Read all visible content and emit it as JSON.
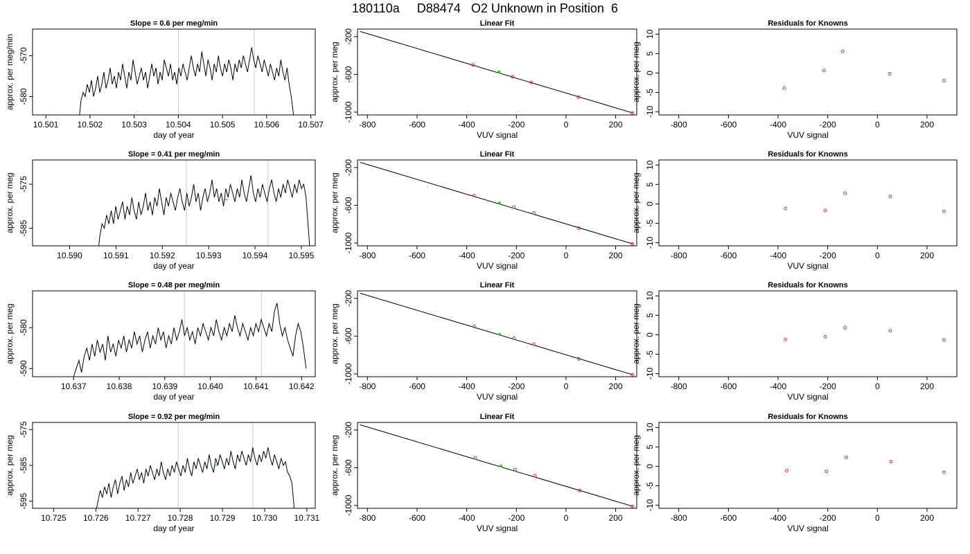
{
  "page": {
    "title": "180110a     D88474   O2 Unknown in Position  6"
  },
  "chart_data": [
    {
      "type": "line",
      "title": "Slope =  0.6  per meg/min",
      "xlabel": "day of year",
      "ylabel": "approx. per meg/min",
      "xlim": [
        10.5007,
        10.5071
      ],
      "ylim": [
        -584.5,
        -563.5
      ],
      "xticks": [
        10.501,
        10.502,
        10.503,
        10.504,
        10.505,
        10.506,
        10.507
      ],
      "xtick_labels": [
        "10.501",
        "10.502",
        "10.503",
        "10.504",
        "10.505",
        "10.506",
        "10.507"
      ],
      "yticks": [
        -580,
        -570
      ],
      "ytick_labels": [
        "-580",
        "-570"
      ],
      "vlines": [
        10.504,
        10.50572
      ],
      "green_point": {
        "x": 10.50485,
        "y": -573.0
      },
      "series": [
        {
          "x_start": 10.50175,
          "x_end": 10.50665,
          "y": [
            -586,
            -581,
            -579,
            -580,
            -577,
            -579,
            -576,
            -580,
            -578,
            -575,
            -579,
            -577,
            -574,
            -578,
            -576,
            -573,
            -577,
            -575,
            -578,
            -574,
            -576,
            -572,
            -575,
            -578,
            -574,
            -576,
            -571,
            -574,
            -577,
            -575,
            -573,
            -576,
            -574,
            -578,
            -575,
            -572,
            -575,
            -573,
            -577,
            -574,
            -576,
            -571,
            -573,
            -575,
            -572,
            -576,
            -574,
            -577,
            -573,
            -575,
            -572,
            -574,
            -576,
            -573,
            -570,
            -573,
            -575,
            -572,
            -574,
            -569,
            -572,
            -575,
            -571,
            -573,
            -576,
            -572,
            -574,
            -570,
            -573,
            -575,
            -572,
            -574,
            -571,
            -573,
            -576,
            -572,
            -574,
            -571,
            -573,
            -570,
            -572,
            -574,
            -571,
            -568,
            -571,
            -573,
            -570,
            -572,
            -574,
            -571,
            -573,
            -575,
            -572,
            -574,
            -576,
            -573,
            -575,
            -571,
            -574,
            -576,
            -573,
            -577,
            -580,
            -584,
            -589
          ]
        }
      ]
    },
    {
      "type": "line",
      "title": "Linear Fit",
      "xlabel": "VUV signal",
      "ylabel": "approx. per meg",
      "xlim": [
        -840,
        285
      ],
      "ylim": [
        -1030,
        -120
      ],
      "xticks": [
        -800,
        -600,
        -400,
        -200,
        0,
        200
      ],
      "xtick_labels": [
        "-800",
        "-600",
        "-400",
        "-200",
        "0",
        "200"
      ],
      "yticks": [
        -200,
        -600,
        -1000
      ],
      "ytick_labels": [
        "-200",
        "-600",
        "-1000"
      ],
      "fit_line": [
        [
          -830,
          -145
        ],
        [
          270,
          -1010
        ]
      ],
      "knowns": [
        [
          -375,
          -500
        ],
        [
          -215,
          -625
        ],
        [
          -140,
          -685
        ],
        [
          50,
          -843
        ],
        [
          268,
          -1010
        ]
      ],
      "unknown": [
        -270,
        -573
      ]
    },
    {
      "type": "scatter",
      "title": "Residuals for Knowns",
      "xlabel": "VUV signal",
      "ylabel": "approx. per meg",
      "xlim": [
        -880,
        320
      ],
      "ylim": [
        -10.8,
        11.3
      ],
      "xticks": [
        -800,
        -600,
        -400,
        -200,
        0,
        200
      ],
      "xtick_labels": [
        "-800",
        "-600",
        "-400",
        "-200",
        "0",
        "200"
      ],
      "yticks": [
        -10,
        -5,
        0,
        5,
        10
      ],
      "ytick_labels": [
        "-10",
        "-5",
        "0",
        "5",
        "10"
      ],
      "points": [
        [
          -375,
          -3.9
        ],
        [
          -215,
          0.6
        ],
        [
          -140,
          5.6
        ],
        [
          50,
          -0.2
        ],
        [
          268,
          -2.0
        ]
      ]
    },
    {
      "type": "line",
      "title": "Slope =  0.41  per meg/min",
      "xlabel": "day of year",
      "ylabel": "approx. per meg",
      "xlim": [
        10.5892,
        10.5953
      ],
      "ylim": [
        -589.0,
        -569.5
      ],
      "xticks": [
        10.59,
        10.591,
        10.592,
        10.593,
        10.594,
        10.595
      ],
      "xtick_labels": [
        "10.590",
        "10.591",
        "10.592",
        "10.593",
        "10.594",
        "10.595"
      ],
      "yticks": [
        -585,
        -575
      ],
      "ytick_labels": [
        "-585",
        "-575"
      ],
      "vlines": [
        10.59252,
        10.59428
      ],
      "green_point": {
        "x": 10.59338,
        "y": -578.5
      },
      "series": [
        {
          "x_start": 10.5906,
          "x_end": 10.5952,
          "y": [
            -592,
            -587,
            -584,
            -585,
            -582,
            -584,
            -581,
            -584,
            -580,
            -583,
            -581,
            -579,
            -583,
            -580,
            -582,
            -578,
            -581,
            -583,
            -579,
            -582,
            -580,
            -577,
            -581,
            -579,
            -582,
            -578,
            -580,
            -576,
            -579,
            -582,
            -578,
            -580,
            -577,
            -579,
            -581,
            -578,
            -576,
            -579,
            -581,
            -577,
            -580,
            -578,
            -575,
            -579,
            -577,
            -581,
            -578,
            -576,
            -579,
            -577,
            -574,
            -578,
            -576,
            -579,
            -577,
            -580,
            -576,
            -578,
            -575,
            -577,
            -579,
            -576,
            -578,
            -574,
            -577,
            -579,
            -576,
            -573,
            -577,
            -579,
            -576,
            -578,
            -575,
            -577,
            -579,
            -576,
            -574,
            -577,
            -579,
            -576,
            -578,
            -575,
            -577,
            -574,
            -576,
            -578,
            -575,
            -577,
            -574,
            -576,
            -575,
            -578,
            -585,
            -592
          ]
        }
      ]
    },
    {
      "type": "line",
      "title": "Linear Fit",
      "xlabel": "VUV signal",
      "ylabel": "approx. per meg",
      "xlim": [
        -840,
        285
      ],
      "ylim": [
        -1030,
        -120
      ],
      "xticks": [
        -800,
        -600,
        -400,
        -200,
        0,
        200
      ],
      "xtick_labels": [
        "-800",
        "-600",
        "-400",
        "-200",
        "0",
        "200"
      ],
      "yticks": [
        -200,
        -600,
        -1000
      ],
      "ytick_labels": [
        "-200",
        "-600",
        "-1000"
      ],
      "fit_line": [
        [
          -830,
          -145
        ],
        [
          270,
          -1010
        ]
      ],
      "knowns": [
        [
          -370,
          -497
        ],
        [
          -210,
          -620
        ],
        [
          -130,
          -682
        ],
        [
          52,
          -843
        ],
        [
          268,
          -1010
        ]
      ],
      "unknown": [
        -268,
        -578
      ]
    },
    {
      "type": "scatter",
      "title": "Residuals for Knowns",
      "xlabel": "VUV signal",
      "ylabel": "approx. per meg",
      "xlim": [
        -880,
        320
      ],
      "ylim": [
        -10.8,
        11.3
      ],
      "xticks": [
        -800,
        -600,
        -400,
        -200,
        0,
        200
      ],
      "xtick_labels": [
        "-800",
        "-600",
        "-400",
        "-200",
        "0",
        "200"
      ],
      "yticks": [
        -10,
        -5,
        0,
        5,
        10
      ],
      "ytick_labels": [
        "-10",
        "-5",
        "0",
        "5",
        "10"
      ],
      "points": [
        [
          -370,
          -1.2
        ],
        [
          -210,
          -1.7
        ],
        [
          -130,
          2.7
        ],
        [
          52,
          1.9
        ],
        [
          268,
          -1.9
        ]
      ]
    },
    {
      "type": "line",
      "title": "Slope =  0.48  per meg/min",
      "xlabel": "day of year",
      "ylabel": "approx. per meg",
      "xlim": [
        10.6361,
        10.6423
      ],
      "ylim": [
        -592.0,
        -571.0
      ],
      "xticks": [
        10.637,
        10.638,
        10.639,
        10.64,
        10.641,
        10.642
      ],
      "xtick_labels": [
        "10.637",
        "10.638",
        "10.639",
        "10.640",
        "10.641",
        "10.642"
      ],
      "yticks": [
        -590,
        -580
      ],
      "ytick_labels": [
        "-590",
        "-580"
      ],
      "vlines": [
        10.63943,
        10.64112
      ],
      "green_point": {
        "x": 10.64028,
        "y": -581.5
      },
      "series": [
        {
          "x_start": 10.637,
          "x_end": 10.6421,
          "y": [
            -592,
            -590,
            -588,
            -591,
            -587,
            -585,
            -588,
            -584,
            -587,
            -583,
            -586,
            -584,
            -588,
            -582,
            -586,
            -584,
            -587,
            -583,
            -585,
            -582,
            -586,
            -583,
            -585,
            -581,
            -584,
            -582,
            -586,
            -583,
            -581,
            -585,
            -582,
            -584,
            -580,
            -583,
            -581,
            -585,
            -582,
            -584,
            -580,
            -583,
            -581,
            -578,
            -582,
            -580,
            -583,
            -581,
            -584,
            -580,
            -582,
            -579,
            -581,
            -583,
            -580,
            -582,
            -578,
            -581,
            -583,
            -580,
            -582,
            -579,
            -581,
            -577,
            -580,
            -582,
            -579,
            -581,
            -583,
            -580,
            -582,
            -579,
            -581,
            -578,
            -580,
            -582,
            -579,
            -581,
            -576,
            -574,
            -579,
            -582,
            -580,
            -583,
            -585,
            -587,
            -582,
            -579,
            -581,
            -585,
            -590
          ]
        }
      ]
    },
    {
      "type": "line",
      "title": "Linear Fit",
      "xlabel": "VUV signal",
      "ylabel": "approx. per meg",
      "xlim": [
        -840,
        285
      ],
      "ylim": [
        -1030,
        -120
      ],
      "xticks": [
        -800,
        -600,
        -400,
        -200,
        0,
        200
      ],
      "xtick_labels": [
        "-800",
        "-600",
        "-400",
        "-200",
        "0",
        "200"
      ],
      "yticks": [
        -200,
        -600,
        -1000
      ],
      "ytick_labels": [
        "-200",
        "-600",
        "-1000"
      ],
      "fit_line": [
        [
          -830,
          -145
        ],
        [
          270,
          -1010
        ]
      ],
      "knowns": [
        [
          -370,
          -497
        ],
        [
          -210,
          -622
        ],
        [
          -130,
          -684
        ],
        [
          52,
          -842
        ],
        [
          268,
          -1010
        ]
      ],
      "unknown": [
        -268,
        -580
      ]
    },
    {
      "type": "scatter",
      "title": "Residuals for Knowns",
      "xlabel": "VUV signal",
      "ylabel": "approx. per meg",
      "xlim": [
        -880,
        320
      ],
      "ylim": [
        -10.8,
        11.3
      ],
      "xticks": [
        -800,
        -600,
        -400,
        -200,
        0,
        200
      ],
      "xtick_labels": [
        "-800",
        "-600",
        "-400",
        "-200",
        "0",
        "200"
      ],
      "yticks": [
        -10,
        -5,
        0,
        5,
        10
      ],
      "ytick_labels": [
        "-10",
        "-5",
        "0",
        "5",
        "10"
      ],
      "points": [
        [
          -370,
          -1.2
        ],
        [
          -210,
          -0.5
        ],
        [
          -130,
          1.8
        ],
        [
          52,
          1.0
        ],
        [
          268,
          -1.3
        ]
      ]
    },
    {
      "type": "line",
      "title": "Slope =  0.92  per meg/min",
      "xlabel": "day of year",
      "ylabel": "approx. per meg",
      "xlim": [
        10.7245,
        10.7312
      ],
      "ylim": [
        -597.0,
        -573.0
      ],
      "xticks": [
        10.725,
        10.726,
        10.727,
        10.728,
        10.729,
        10.73,
        10.731
      ],
      "xtick_labels": [
        "10.725",
        "10.726",
        "10.727",
        "10.728",
        "10.729",
        "10.730",
        "10.731"
      ],
      "yticks": [
        -595,
        -585,
        -575
      ],
      "ytick_labels": [
        "-595",
        "-585",
        "-575"
      ],
      "vlines": [
        10.72795,
        10.72972
      ],
      "green_point": {
        "x": 10.72885,
        "y": -585.0
      },
      "series": [
        {
          "x_start": 10.726,
          "x_end": 10.7307,
          "y": [
            -598,
            -595,
            -592,
            -594,
            -591,
            -593,
            -590,
            -594,
            -591,
            -589,
            -593,
            -590,
            -588,
            -592,
            -589,
            -591,
            -587,
            -590,
            -588,
            -586,
            -589,
            -587,
            -590,
            -586,
            -588,
            -585,
            -587,
            -589,
            -586,
            -588,
            -584,
            -587,
            -589,
            -586,
            -588,
            -585,
            -587,
            -584,
            -586,
            -588,
            -585,
            -587,
            -583,
            -586,
            -588,
            -584,
            -586,
            -583,
            -585,
            -587,
            -584,
            -586,
            -582,
            -585,
            -587,
            -583,
            -585,
            -582,
            -584,
            -586,
            -583,
            -585,
            -581,
            -584,
            -586,
            -582,
            -584,
            -581,
            -583,
            -585,
            -582,
            -584,
            -580,
            -583,
            -585,
            -582,
            -584,
            -581,
            -583,
            -580,
            -583,
            -585,
            -582,
            -584,
            -586,
            -583,
            -585,
            -584,
            -587,
            -588,
            -590,
            -597
          ]
        }
      ]
    },
    {
      "type": "line",
      "title": "Linear Fit",
      "xlabel": "VUV signal",
      "ylabel": "approx. per meg",
      "xlim": [
        -840,
        285
      ],
      "ylim": [
        -1030,
        -120
      ],
      "xticks": [
        -800,
        -600,
        -400,
        -200,
        0,
        200
      ],
      "xtick_labels": [
        "-800",
        "-600",
        "-400",
        "-200",
        "0",
        "200"
      ],
      "yticks": [
        -200,
        -600,
        -1000
      ],
      "ytick_labels": [
        "-200",
        "-600",
        "-1000"
      ],
      "fit_line": [
        [
          -830,
          -145
        ],
        [
          270,
          -1010
        ]
      ],
      "knowns": [
        [
          -365,
          -495
        ],
        [
          -205,
          -620
        ],
        [
          -125,
          -683
        ],
        [
          55,
          -842
        ],
        [
          268,
          -1010
        ]
      ],
      "unknown": [
        -262,
        -582
      ]
    },
    {
      "type": "scatter",
      "title": "Residuals for Knowns",
      "xlabel": "VUV signal",
      "ylabel": "approx. per meg",
      "xlim": [
        -880,
        320
      ],
      "ylim": [
        -10.8,
        11.3
      ],
      "xticks": [
        -800,
        -600,
        -400,
        -200,
        0,
        200
      ],
      "xtick_labels": [
        "-800",
        "-600",
        "-400",
        "-200",
        "0",
        "200"
      ],
      "yticks": [
        -10,
        -5,
        0,
        5,
        10
      ],
      "ytick_labels": [
        "-10",
        "-5",
        "0",
        "5",
        "10"
      ],
      "points": [
        [
          -365,
          -1.1
        ],
        [
          -205,
          -1.3
        ],
        [
          -125,
          2.3
        ],
        [
          55,
          1.2
        ],
        [
          268,
          -1.5
        ]
      ]
    }
  ]
}
